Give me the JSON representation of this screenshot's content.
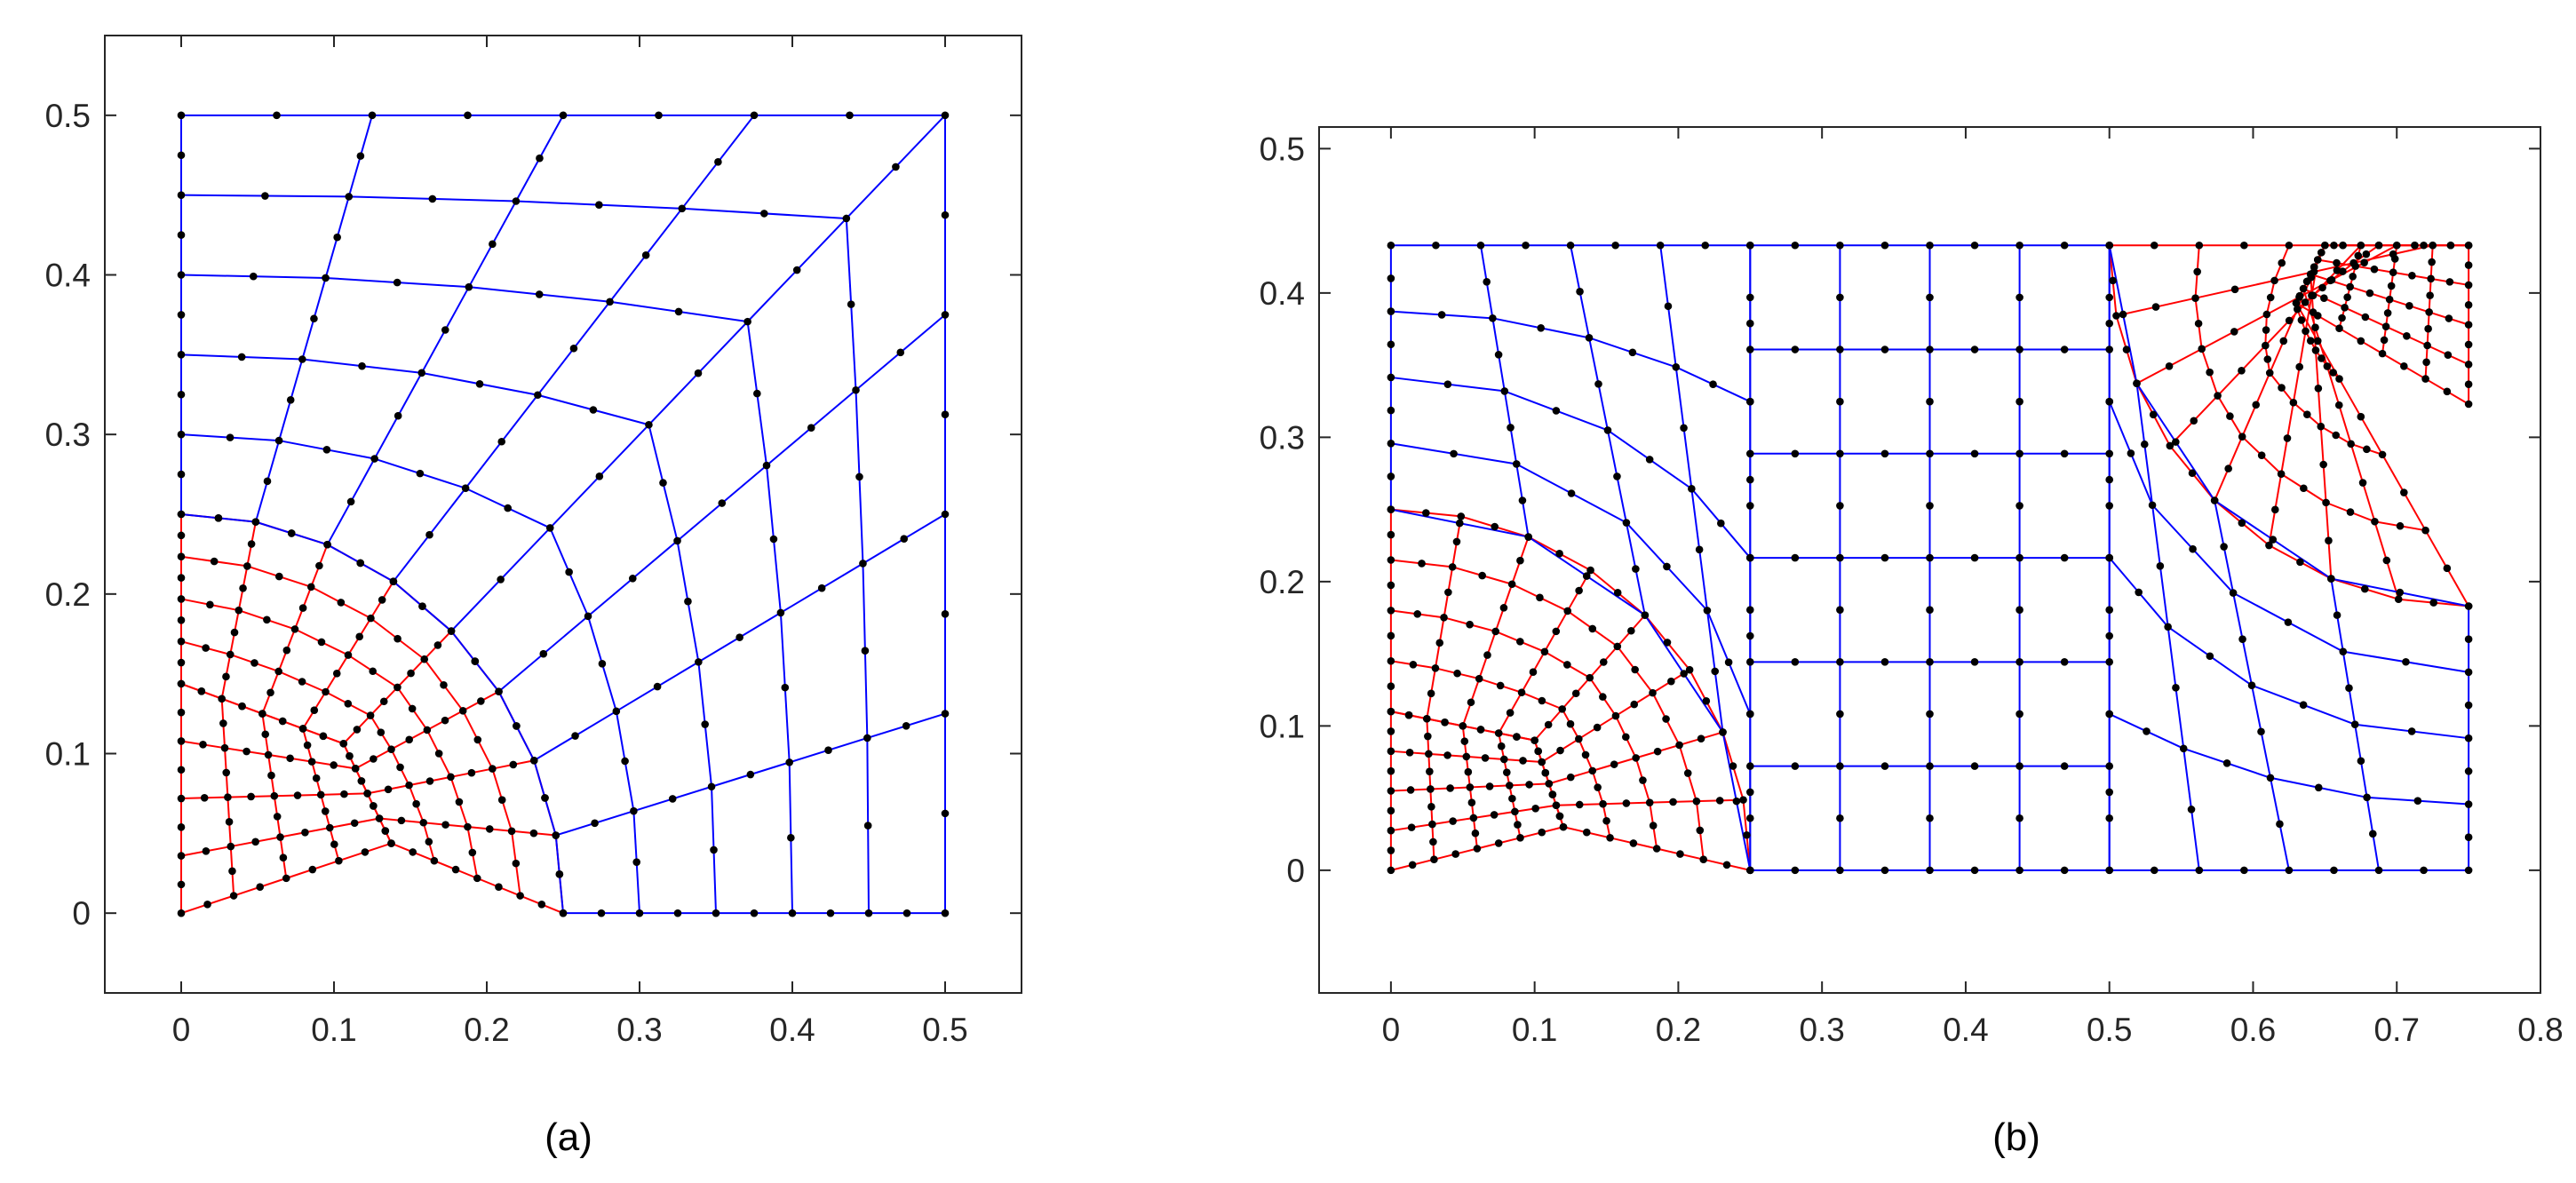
{
  "colors": {
    "blue": "#0000ff",
    "red": "#ff0000",
    "node": "#000000",
    "axes": "#262626"
  },
  "panels": [
    {
      "caption": "(a)",
      "xlim": [
        -0.05,
        0.55
      ],
      "ylim": [
        -0.05,
        0.55
      ],
      "xticks": [
        0,
        0.1,
        0.2,
        0.3,
        0.4,
        0.5
      ],
      "xtick_labels": [
        "0",
        "0.1",
        "0.2",
        "0.3",
        "0.4",
        "0.5"
      ],
      "yticks": [
        0,
        0.1,
        0.2,
        0.3,
        0.4,
        0.5
      ],
      "ytick_labels": [
        "0",
        "0.1",
        "0.2",
        "0.3",
        "0.4",
        "0.5"
      ]
    },
    {
      "caption": "(b)",
      "xlim": [
        -0.05,
        0.8
      ],
      "ylim": [
        -0.085,
        0.515
      ],
      "xticks": [
        0,
        0.1,
        0.2,
        0.3,
        0.4,
        0.5,
        0.6,
        0.7,
        0.8
      ],
      "xtick_labels": [
        "0",
        "0.1",
        "0.2",
        "0.3",
        "0.4",
        "0.5",
        "0.6",
        "0.7",
        "0.8"
      ],
      "yticks": [
        0,
        0.1,
        0.2,
        0.3,
        0.4,
        0.5
      ],
      "ytick_labels": [
        "0",
        "0.1",
        "0.2",
        "0.3",
        "0.4",
        "0.5"
      ]
    }
  ]
}
